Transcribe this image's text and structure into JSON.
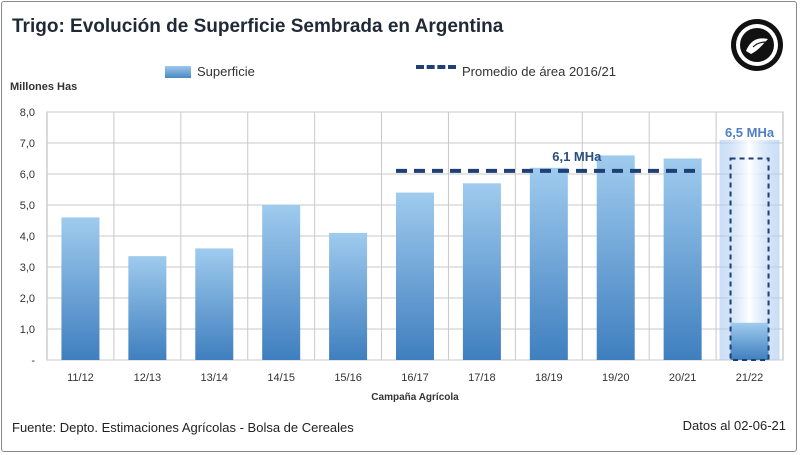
{
  "title": "Trigo: Evolución de Superficie Sembrada en Argentina",
  "legend": {
    "bar_label": "Superficie",
    "line_label": "Promedio de área 2016/21"
  },
  "unit_label": "Millones Has",
  "source": "Fuente: Depto. Estimaciones Agrícolas - Bolsa de Cereales",
  "date": "Datos al 02-06-21",
  "colors": {
    "bar_top": "#9fcbee",
    "bar_bottom": "#3f7fbf",
    "average_line": "#1f3f77",
    "highlight_glow": "#9fc4f0",
    "highlight_label": "#4f7fc6",
    "average_label": "#2a4f80"
  },
  "chart_data": {
    "type": "bar",
    "categories": [
      "11/12",
      "12/13",
      "13/14",
      "14/15",
      "15/16",
      "16/17",
      "17/18",
      "18/19",
      "19/20",
      "20/21",
      "21/22"
    ],
    "series": [
      {
        "name": "Superficie",
        "values": [
          4.6,
          3.35,
          3.6,
          5.0,
          4.1,
          5.4,
          5.7,
          6.2,
          6.6,
          6.5,
          1.2
        ]
      }
    ],
    "average": {
      "name": "Promedio de área 2016/21",
      "value": 6.1,
      "from": "16/17",
      "to": "20/21",
      "label": "6,1 MHa"
    },
    "projection": {
      "category": "21/22",
      "value": 6.5,
      "label": "6,5 MHa"
    },
    "xlabel": "Campaña  Agrícola",
    "ylabel": "Millones Has",
    "ylim": [
      0,
      8
    ],
    "yticks": [
      "-",
      "1,0",
      "2,0",
      "3,0",
      "4,0",
      "5,0",
      "6,0",
      "7,0",
      "8,0"
    ],
    "grid": true
  }
}
